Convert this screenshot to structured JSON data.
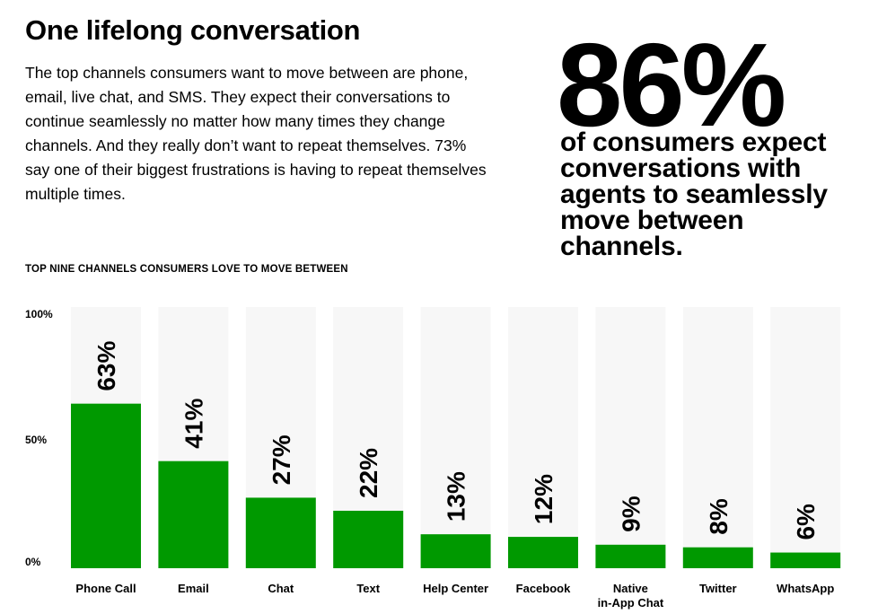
{
  "header": {
    "title": "One lifelong conversation",
    "body": "The top channels consumers want to move between are phone, email, live chat, and SMS. They expect their conversations to continue seamlessly no matter how many times they change channels. And they really don’t want to repeat themselves. 73% say one of their biggest frustrations is having to repeat themselves multiple times."
  },
  "stat": {
    "value": "86%",
    "caption": "of consumers expect conversations with agents to seamlessly move between channels."
  },
  "colors": {
    "bar": "#009900",
    "track": "#f7f7f7",
    "text": "#000000"
  },
  "chart_data": {
    "type": "bar",
    "title": "TOP NINE CHANNELS CONSUMERS LOVE TO MOVE BETWEEN",
    "categories": [
      "Phone Call",
      "Email",
      "Chat",
      "Text",
      "Help Center",
      "Facebook",
      "Native in-App Chat",
      "Twitter",
      "WhatsApp"
    ],
    "category_lines": [
      [
        "Phone Call"
      ],
      [
        "Email"
      ],
      [
        "Chat"
      ],
      [
        "Text"
      ],
      [
        "Help Center"
      ],
      [
        "Facebook"
      ],
      [
        "Native",
        "in-App Chat"
      ],
      [
        "Twitter"
      ],
      [
        "WhatsApp"
      ]
    ],
    "values": [
      63,
      41,
      27,
      22,
      13,
      12,
      9,
      8,
      6
    ],
    "data_labels": [
      "63%",
      "41%",
      "27%",
      "22%",
      "13%",
      "12%",
      "9%",
      "8%",
      "6%"
    ],
    "ylim": [
      0,
      100
    ],
    "yticks": [
      0,
      50,
      100
    ],
    "ytick_labels": [
      "0%",
      "50%",
      "100%"
    ],
    "xlabel": "",
    "ylabel": "",
    "grid": false
  }
}
